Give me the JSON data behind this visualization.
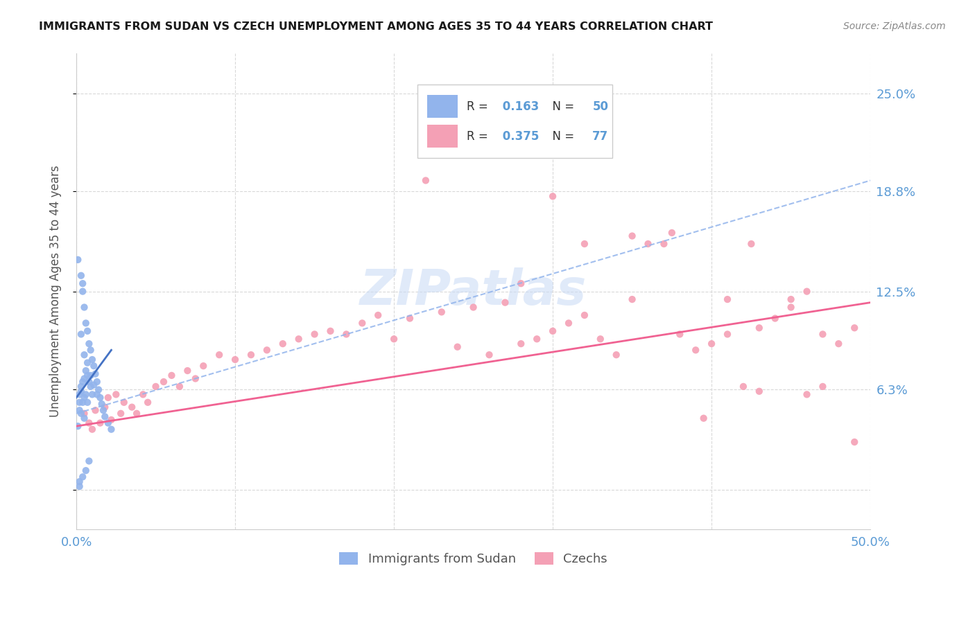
{
  "title": "IMMIGRANTS FROM SUDAN VS CZECH UNEMPLOYMENT AMONG AGES 35 TO 44 YEARS CORRELATION CHART",
  "source": "Source: ZipAtlas.com",
  "ylabel": "Unemployment Among Ages 35 to 44 years",
  "legend1_r": "0.163",
  "legend1_n": "50",
  "legend2_r": "0.375",
  "legend2_n": "77",
  "color_blue": "#92b4ec",
  "color_pink": "#f4a0b5",
  "color_blue_line": "#4472c4",
  "color_pink_line": "#f06292",
  "color_axis_label": "#5b9bd5",
  "watermark": "ZIPatlas",
  "xlim": [
    0.0,
    0.5
  ],
  "ylim": [
    -0.025,
    0.275
  ],
  "yticks": [
    0.0,
    0.063,
    0.125,
    0.188,
    0.25
  ],
  "ytick_labels": [
    "",
    "6.3%",
    "12.5%",
    "18.8%",
    "25.0%"
  ],
  "xticks": [
    0.0,
    0.1,
    0.2,
    0.3,
    0.4,
    0.5
  ],
  "xtick_labels": [
    "0.0%",
    "",
    "",
    "",
    "",
    "50.0%"
  ],
  "background_color": "#ffffff",
  "grid_color": "#d9d9d9",
  "sudan_x": [
    0.001,
    0.001,
    0.002,
    0.002,
    0.002,
    0.002,
    0.003,
    0.003,
    0.003,
    0.003,
    0.004,
    0.004,
    0.004,
    0.004,
    0.005,
    0.005,
    0.005,
    0.005,
    0.006,
    0.006,
    0.006,
    0.007,
    0.007,
    0.007,
    0.008,
    0.008,
    0.009,
    0.009,
    0.01,
    0.01,
    0.011,
    0.012,
    0.013,
    0.014,
    0.015,
    0.016,
    0.017,
    0.018,
    0.02,
    0.022,
    0.003,
    0.005,
    0.007,
    0.009,
    0.011,
    0.013,
    0.002,
    0.004,
    0.006,
    0.008
  ],
  "sudan_y": [
    0.145,
    0.04,
    0.06,
    0.055,
    0.05,
    0.005,
    0.135,
    0.065,
    0.062,
    0.048,
    0.13,
    0.125,
    0.068,
    0.055,
    0.115,
    0.07,
    0.058,
    0.045,
    0.105,
    0.075,
    0.06,
    0.1,
    0.072,
    0.055,
    0.092,
    0.068,
    0.088,
    0.065,
    0.082,
    0.06,
    0.078,
    0.073,
    0.068,
    0.063,
    0.058,
    0.054,
    0.05,
    0.046,
    0.042,
    0.038,
    0.098,
    0.085,
    0.08,
    0.072,
    0.066,
    0.06,
    0.002,
    0.008,
    0.012,
    0.018
  ],
  "czech_x": [
    0.005,
    0.008,
    0.01,
    0.012,
    0.015,
    0.018,
    0.02,
    0.022,
    0.025,
    0.028,
    0.03,
    0.035,
    0.038,
    0.042,
    0.045,
    0.05,
    0.055,
    0.06,
    0.065,
    0.07,
    0.075,
    0.08,
    0.09,
    0.1,
    0.11,
    0.12,
    0.13,
    0.14,
    0.15,
    0.16,
    0.17,
    0.18,
    0.19,
    0.2,
    0.21,
    0.22,
    0.23,
    0.24,
    0.25,
    0.26,
    0.27,
    0.28,
    0.29,
    0.3,
    0.31,
    0.32,
    0.33,
    0.34,
    0.35,
    0.36,
    0.37,
    0.375,
    0.38,
    0.39,
    0.4,
    0.41,
    0.42,
    0.425,
    0.43,
    0.44,
    0.45,
    0.46,
    0.47,
    0.48,
    0.49,
    0.3,
    0.22,
    0.35,
    0.28,
    0.32,
    0.45,
    0.47,
    0.49,
    0.41,
    0.43,
    0.395,
    0.46
  ],
  "czech_y": [
    0.048,
    0.042,
    0.038,
    0.05,
    0.042,
    0.052,
    0.058,
    0.044,
    0.06,
    0.048,
    0.055,
    0.052,
    0.048,
    0.06,
    0.055,
    0.065,
    0.068,
    0.072,
    0.065,
    0.075,
    0.07,
    0.078,
    0.085,
    0.082,
    0.085,
    0.088,
    0.092,
    0.095,
    0.098,
    0.1,
    0.098,
    0.105,
    0.11,
    0.095,
    0.108,
    0.22,
    0.112,
    0.09,
    0.115,
    0.085,
    0.118,
    0.092,
    0.095,
    0.1,
    0.105,
    0.11,
    0.095,
    0.085,
    0.12,
    0.155,
    0.155,
    0.162,
    0.098,
    0.088,
    0.092,
    0.098,
    0.065,
    0.155,
    0.102,
    0.108,
    0.115,
    0.125,
    0.098,
    0.092,
    0.102,
    0.185,
    0.195,
    0.16,
    0.13,
    0.155,
    0.12,
    0.065,
    0.03,
    0.12,
    0.062,
    0.045,
    0.06
  ],
  "sudan_line_x": [
    0.0,
    0.022
  ],
  "sudan_line_y": [
    0.058,
    0.088
  ],
  "czech_line_x": [
    0.0,
    0.5
  ],
  "czech_line_y": [
    0.04,
    0.118
  ],
  "dash_line_x": [
    0.0,
    0.5
  ],
  "dash_line_y": [
    0.048,
    0.195
  ]
}
